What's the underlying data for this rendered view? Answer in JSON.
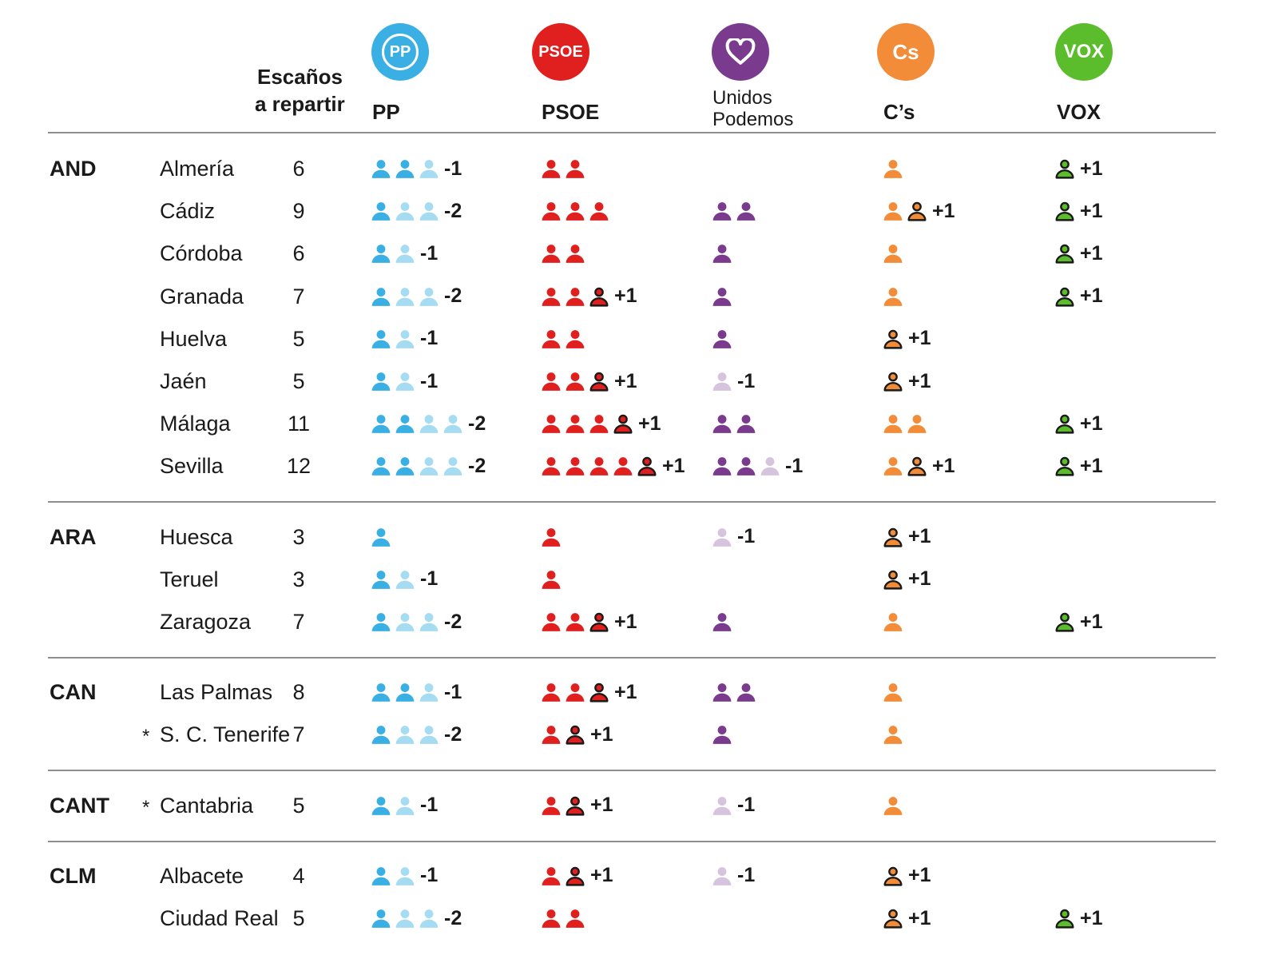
{
  "header": {
    "seats_label_1": "Escaños",
    "seats_label_2": "a repartir",
    "parties": [
      {
        "key": "pp",
        "name": "PP",
        "logo_text": "PP",
        "color": "#3aafe4",
        "light": "#a6dcf2"
      },
      {
        "key": "psoe",
        "name": "PSOE",
        "logo_text": "PSOE",
        "color": "#e01f1f",
        "light": "#f3a3a3"
      },
      {
        "key": "up",
        "name_1": "Unidos",
        "name_2": "Podemos",
        "color": "#7a3a8d",
        "light": "#d6c3dd"
      },
      {
        "key": "cs",
        "name": "C’s",
        "logo_text": "Cs",
        "color": "#f28c38",
        "light": "#f8c79b"
      },
      {
        "key": "vox",
        "name": "VOX",
        "logo_text": "VOX",
        "color": "#5bbd2b",
        "light": "#b6e29d"
      }
    ]
  },
  "chart_data": {
    "type": "table",
    "columns": [
      "Escaños a repartir",
      "PP",
      "PSOE",
      "Unidos Podemos",
      "C’s",
      "VOX"
    ],
    "icon_legend": {
      "kept": "filled icon",
      "lost": "light icon",
      "gained": "outlined icon"
    },
    "groups": [
      {
        "region": "AND",
        "rows": [
          {
            "province": "Almería",
            "seats": 6,
            "pp": {
              "kept": 2,
              "lost": 1,
              "delta": "-1"
            },
            "psoe": {
              "kept": 2
            },
            "cs": {
              "kept": 1
            },
            "vox": {
              "gained": 1,
              "delta": "+1"
            }
          },
          {
            "province": "Cádiz",
            "seats": 9,
            "pp": {
              "kept": 1,
              "lost": 2,
              "delta": "-2"
            },
            "psoe": {
              "kept": 3
            },
            "up": {
              "kept": 2
            },
            "cs": {
              "kept": 1,
              "gained": 1,
              "delta": "+1"
            },
            "vox": {
              "gained": 1,
              "delta": "+1"
            }
          },
          {
            "province": "Córdoba",
            "seats": 6,
            "pp": {
              "kept": 1,
              "lost": 1,
              "delta": "-1"
            },
            "psoe": {
              "kept": 2
            },
            "up": {
              "kept": 1
            },
            "cs": {
              "kept": 1
            },
            "vox": {
              "gained": 1,
              "delta": "+1"
            }
          },
          {
            "province": "Granada",
            "seats": 7,
            "pp": {
              "kept": 1,
              "lost": 2,
              "delta": "-2"
            },
            "psoe": {
              "kept": 2,
              "gained": 1,
              "delta": "+1"
            },
            "up": {
              "kept": 1
            },
            "cs": {
              "kept": 1
            },
            "vox": {
              "gained": 1,
              "delta": "+1"
            }
          },
          {
            "province": "Huelva",
            "seats": 5,
            "pp": {
              "kept": 1,
              "lost": 1,
              "delta": "-1"
            },
            "psoe": {
              "kept": 2
            },
            "up": {
              "kept": 1
            },
            "cs": {
              "gained": 1,
              "delta": "+1"
            }
          },
          {
            "province": "Jaén",
            "seats": 5,
            "pp": {
              "kept": 1,
              "lost": 1,
              "delta": "-1"
            },
            "psoe": {
              "kept": 2,
              "gained": 1,
              "delta": "+1"
            },
            "up": {
              "lost": 1,
              "delta": "-1"
            },
            "cs": {
              "gained": 1,
              "delta": "+1"
            }
          },
          {
            "province": "Málaga",
            "seats": 11,
            "pp": {
              "kept": 2,
              "lost": 2,
              "delta": "-2"
            },
            "psoe": {
              "kept": 3,
              "gained": 1,
              "delta": "+1"
            },
            "up": {
              "kept": 2
            },
            "cs": {
              "kept": 2
            },
            "vox": {
              "gained": 1,
              "delta": "+1"
            }
          },
          {
            "province": "Sevilla",
            "seats": 12,
            "pp": {
              "kept": 2,
              "lost": 2,
              "delta": "-2"
            },
            "psoe": {
              "kept": 4,
              "gained": 1,
              "delta": "+1"
            },
            "up": {
              "kept": 2,
              "lost": 1,
              "delta": "-1"
            },
            "cs": {
              "kept": 1,
              "gained": 1,
              "delta": "+1"
            },
            "vox": {
              "gained": 1,
              "delta": "+1"
            }
          }
        ]
      },
      {
        "region": "ARA",
        "rows": [
          {
            "province": "Huesca",
            "seats": 3,
            "pp": {
              "kept": 1
            },
            "psoe": {
              "kept": 1
            },
            "up": {
              "lost": 1,
              "delta": "-1"
            },
            "cs": {
              "gained": 1,
              "delta": "+1"
            }
          },
          {
            "province": "Teruel",
            "seats": 3,
            "pp": {
              "kept": 1,
              "lost": 1,
              "delta": "-1"
            },
            "psoe": {
              "kept": 1
            },
            "cs": {
              "gained": 1,
              "delta": "+1"
            }
          },
          {
            "province": "Zaragoza",
            "seats": 7,
            "pp": {
              "kept": 1,
              "lost": 2,
              "delta": "-2"
            },
            "psoe": {
              "kept": 2,
              "gained": 1,
              "delta": "+1"
            },
            "up": {
              "kept": 1
            },
            "cs": {
              "kept": 1
            },
            "vox": {
              "gained": 1,
              "delta": "+1"
            }
          }
        ]
      },
      {
        "region": "CAN",
        "rows": [
          {
            "province": "Las Palmas",
            "seats": 8,
            "pp": {
              "kept": 2,
              "lost": 1,
              "delta": "-1"
            },
            "psoe": {
              "kept": 2,
              "gained": 1,
              "delta": "+1"
            },
            "up": {
              "kept": 2
            },
            "cs": {
              "kept": 1
            }
          },
          {
            "province": "S. C. Tenerife",
            "seats": 7,
            "marker": "*",
            "pp": {
              "kept": 1,
              "lost": 2,
              "delta": "-2"
            },
            "psoe": {
              "kept": 1,
              "gained": 1,
              "delta": "+1"
            },
            "up": {
              "kept": 1
            },
            "cs": {
              "kept": 1
            }
          }
        ]
      },
      {
        "region": "CANT",
        "rows": [
          {
            "province": "Cantabria",
            "seats": 5,
            "marker": "*",
            "pp": {
              "kept": 1,
              "lost": 1,
              "delta": "-1"
            },
            "psoe": {
              "kept": 1,
              "gained": 1,
              "delta": "+1"
            },
            "up": {
              "lost": 1,
              "delta": "-1"
            },
            "cs": {
              "kept": 1
            }
          }
        ]
      },
      {
        "region": "CLM",
        "rows": [
          {
            "province": "Albacete",
            "seats": 4,
            "pp": {
              "kept": 1,
              "lost": 1,
              "delta": "-1"
            },
            "psoe": {
              "kept": 1,
              "gained": 1,
              "delta": "+1"
            },
            "up": {
              "lost": 1,
              "delta": "-1"
            },
            "cs": {
              "gained": 1,
              "delta": "+1"
            }
          },
          {
            "province": "Ciudad Real",
            "seats": 5,
            "pp": {
              "kept": 1,
              "lost": 2,
              "delta": "-2"
            },
            "psoe": {
              "kept": 2
            },
            "cs": {
              "gained": 1,
              "delta": "+1"
            },
            "vox": {
              "gained": 1,
              "delta": "+1"
            }
          }
        ]
      }
    ]
  }
}
